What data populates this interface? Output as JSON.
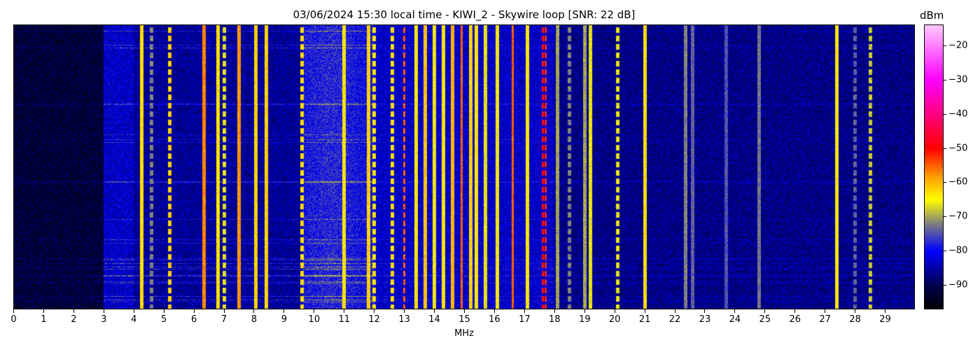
{
  "chart_data": {
    "type": "heatmap",
    "title": "03/06/2024 15:30 local time - KIWI_2 - Skywire loop [SNR: 22 dB]",
    "xlabel": "MHz",
    "xlim": [
      0,
      30
    ],
    "xticks": [
      "0",
      "1",
      "2",
      "3",
      "4",
      "5",
      "6",
      "7",
      "8",
      "9",
      "10",
      "11",
      "12",
      "13",
      "14",
      "15",
      "16",
      "17",
      "18",
      "19",
      "20",
      "21",
      "22",
      "23",
      "24",
      "25",
      "26",
      "27",
      "28",
      "29"
    ],
    "colorbar": {
      "label": "dBm",
      "range": [
        -97,
        -14
      ],
      "ticks": [
        "−20",
        "−30",
        "−40",
        "−50",
        "−60",
        "−70",
        "−80",
        "−90"
      ],
      "tick_values": [
        -20,
        -30,
        -40,
        -50,
        -60,
        -70,
        -80,
        -90
      ],
      "colormap": [
        {
          "dbm": -97,
          "color": "#000000"
        },
        {
          "dbm": -90,
          "color": "#000050"
        },
        {
          "dbm": -80,
          "color": "#0000ff"
        },
        {
          "dbm": -72,
          "color": "#808080"
        },
        {
          "dbm": -65,
          "color": "#ffff00"
        },
        {
          "dbm": -58,
          "color": "#ff9900"
        },
        {
          "dbm": -50,
          "color": "#ff0000"
        },
        {
          "dbm": -40,
          "color": "#ff0080"
        },
        {
          "dbm": -30,
          "color": "#ff00ff"
        },
        {
          "dbm": -14,
          "color": "#ffc8ff"
        }
      ]
    },
    "noise_floor": [
      {
        "from": 0,
        "to": 3,
        "dbm": -92
      },
      {
        "from": 3,
        "to": 4,
        "dbm": -83
      },
      {
        "from": 4,
        "to": 9.6,
        "dbm": -86
      },
      {
        "from": 9.6,
        "to": 12,
        "dbm": -80
      },
      {
        "from": 12,
        "to": 18,
        "dbm": -83
      },
      {
        "from": 18,
        "to": 30,
        "dbm": -87
      }
    ],
    "signals": [
      {
        "mhz": 4.27,
        "dbm": -63
      },
      {
        "mhz": 4.6,
        "dbm": -72
      },
      {
        "mhz": 5.2,
        "dbm": -62
      },
      {
        "mhz": 6.33,
        "dbm": -57
      },
      {
        "mhz": 6.8,
        "dbm": -63
      },
      {
        "mhz": 7.0,
        "dbm": -66
      },
      {
        "mhz": 7.5,
        "dbm": -58
      },
      {
        "mhz": 8.05,
        "dbm": -62
      },
      {
        "mhz": 8.4,
        "dbm": -62
      },
      {
        "mhz": 9.6,
        "dbm": -63
      },
      {
        "mhz": 11.0,
        "dbm": -64
      },
      {
        "mhz": 11.8,
        "dbm": -62
      },
      {
        "mhz": 12.0,
        "dbm": -64
      },
      {
        "mhz": 12.6,
        "dbm": -63
      },
      {
        "mhz": 13.0,
        "dbm": -55
      },
      {
        "mhz": 13.4,
        "dbm": -64
      },
      {
        "mhz": 13.7,
        "dbm": -61
      },
      {
        "mhz": 14.0,
        "dbm": -65
      },
      {
        "mhz": 14.3,
        "dbm": -64
      },
      {
        "mhz": 14.6,
        "dbm": -60
      },
      {
        "mhz": 14.9,
        "dbm": -55
      },
      {
        "mhz": 15.2,
        "dbm": -62
      },
      {
        "mhz": 15.4,
        "dbm": -64
      },
      {
        "mhz": 15.7,
        "dbm": -66
      },
      {
        "mhz": 16.1,
        "dbm": -65
      },
      {
        "mhz": 16.6,
        "dbm": -55
      },
      {
        "mhz": 17.1,
        "dbm": -64
      },
      {
        "mhz": 17.6,
        "dbm": -50
      },
      {
        "mhz": 17.7,
        "dbm": -52
      },
      {
        "mhz": 18.1,
        "dbm": -70
      },
      {
        "mhz": 18.5,
        "dbm": -72
      },
      {
        "mhz": 19.0,
        "dbm": -70
      },
      {
        "mhz": 19.2,
        "dbm": -66
      },
      {
        "mhz": 20.1,
        "dbm": -66
      },
      {
        "mhz": 21.0,
        "dbm": -63
      },
      {
        "mhz": 22.35,
        "dbm": -72
      },
      {
        "mhz": 22.6,
        "dbm": -74
      },
      {
        "mhz": 23.7,
        "dbm": -75
      },
      {
        "mhz": 24.8,
        "dbm": -73
      },
      {
        "mhz": 27.4,
        "dbm": -64
      },
      {
        "mhz": 28.0,
        "dbm": -74
      },
      {
        "mhz": 28.5,
        "dbm": -68
      }
    ]
  }
}
